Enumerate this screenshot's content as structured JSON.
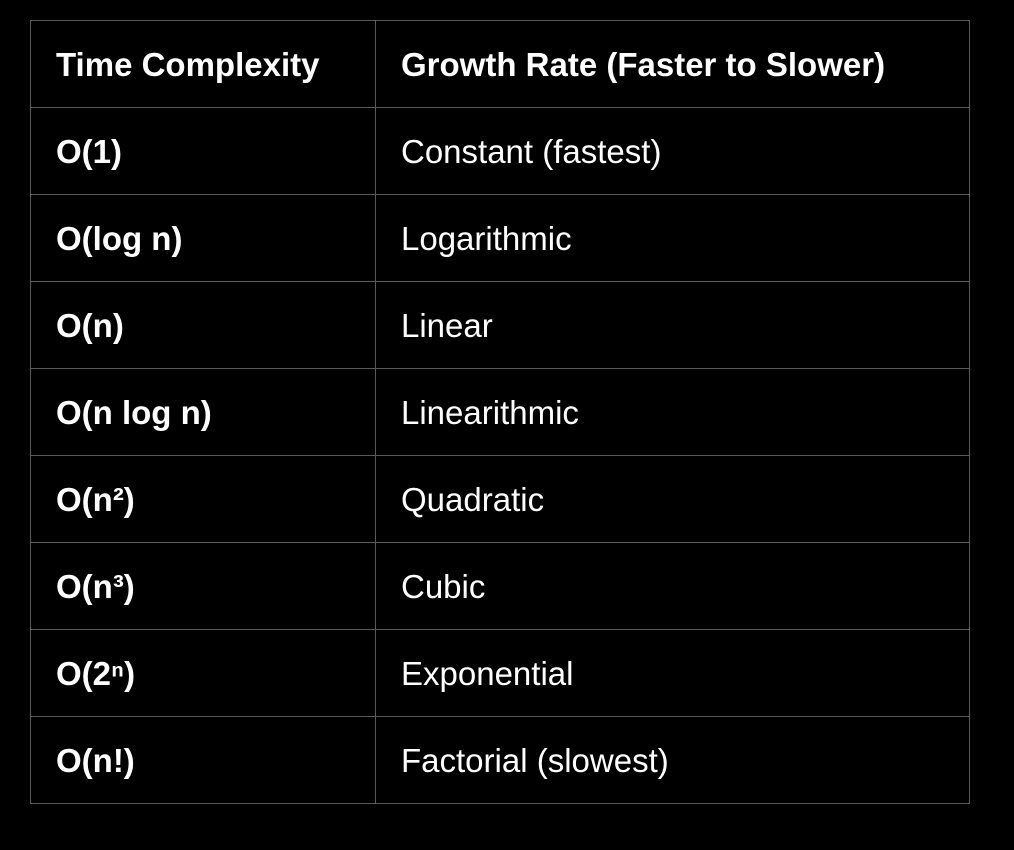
{
  "table": {
    "headers": [
      "Time Complexity",
      "Growth Rate (Faster to Slower)"
    ],
    "rows": [
      {
        "complexity": "O(1)",
        "growth": "Constant (fastest)"
      },
      {
        "complexity": "O(log n)",
        "growth": "Logarithmic"
      },
      {
        "complexity": "O(n)",
        "growth": "Linear"
      },
      {
        "complexity": "O(n log n)",
        "growth": "Linearithmic"
      },
      {
        "complexity": "O(n²)",
        "growth": "Quadratic"
      },
      {
        "complexity": "O(n³)",
        "growth": "Cubic"
      },
      {
        "complexity": "O(2ⁿ)",
        "growth": "Exponential"
      },
      {
        "complexity": "O(n!)",
        "growth": "Factorial (slowest)"
      }
    ]
  },
  "colors": {
    "background": "#000000",
    "text": "#ffffff",
    "border": "#5a5a5a"
  }
}
